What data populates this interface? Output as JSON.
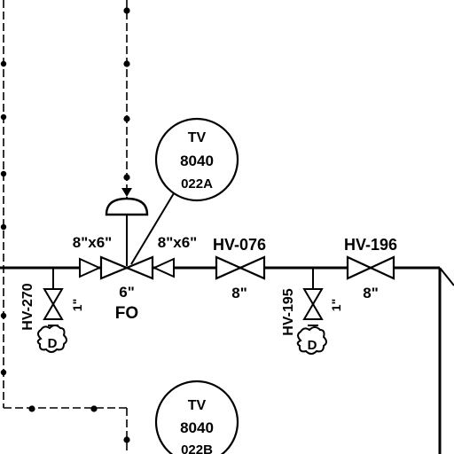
{
  "instrument_top": {
    "line1": "TV",
    "line2": "8040",
    "line3": "022A"
  },
  "instrument_bottom": {
    "line1": "TV",
    "line2": "8040",
    "line3": "022B"
  },
  "reducer_left": {
    "label": "8\"x6\""
  },
  "reducer_right": {
    "label": "8\"x6\""
  },
  "control_valve": {
    "size": "6\"",
    "fail": "FO"
  },
  "valve_hv076": {
    "tag": "HV-076",
    "size": "8\""
  },
  "valve_hv196": {
    "tag": "HV-196",
    "size": "8\""
  },
  "valve_hv270": {
    "tag": "HV-270",
    "size": "1\"",
    "drain": "D"
  },
  "valve_hv195": {
    "tag": "HV-195",
    "size": "1\"",
    "drain": "D"
  }
}
